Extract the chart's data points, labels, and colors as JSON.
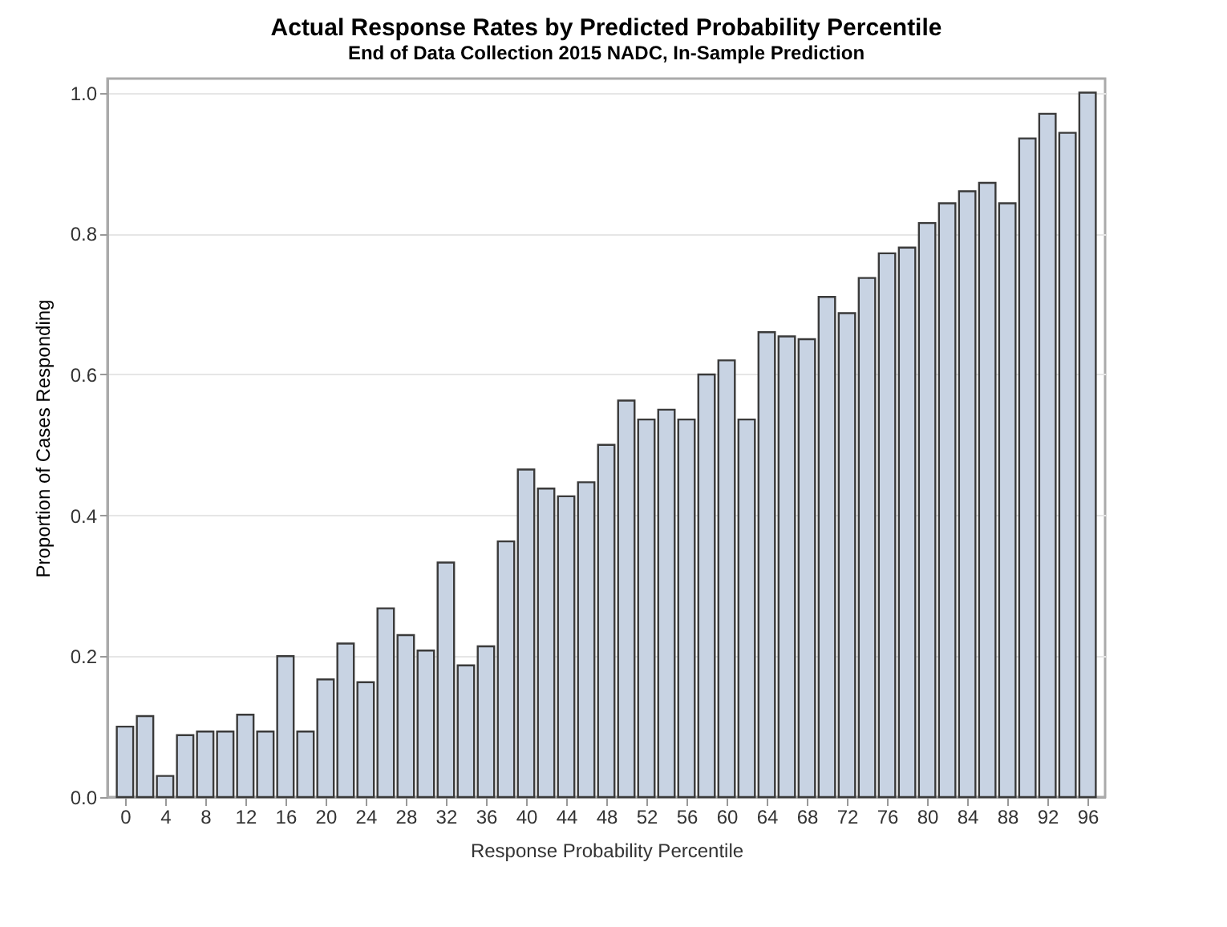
{
  "chart_data": {
    "type": "bar",
    "title": "Actual Response Rates by Predicted Probability Percentile",
    "subtitle": "End of Data Collection 2015 NADC, In-Sample Prediction",
    "xlabel": "Response Probability Percentile",
    "ylabel": "Proportion of Cases Responding",
    "x": [
      0,
      2,
      4,
      6,
      8,
      10,
      12,
      14,
      16,
      18,
      20,
      22,
      24,
      26,
      28,
      30,
      32,
      34,
      36,
      38,
      40,
      42,
      44,
      46,
      48,
      50,
      52,
      54,
      56,
      58,
      60,
      62,
      64,
      66,
      68,
      70,
      72,
      74,
      76,
      78,
      80,
      82,
      84,
      86,
      88,
      90,
      92,
      94,
      96
    ],
    "values": [
      0.1,
      0.115,
      0.03,
      0.088,
      0.093,
      0.093,
      0.117,
      0.093,
      0.2,
      0.093,
      0.167,
      0.218,
      0.163,
      0.268,
      0.23,
      0.208,
      0.333,
      0.187,
      0.214,
      0.363,
      0.465,
      0.438,
      0.427,
      0.447,
      0.5,
      0.563,
      0.536,
      0.55,
      0.536,
      0.6,
      0.62,
      0.536,
      0.66,
      0.654,
      0.65,
      0.71,
      0.687,
      0.737,
      0.772,
      0.78,
      0.815,
      0.843,
      0.86,
      0.872,
      0.843,
      0.935,
      0.97,
      0.943,
      1.0
    ],
    "color": "#c8d3e3",
    "xlim": [
      -1.75,
      97.75
    ],
    "xticks": [
      0,
      4,
      8,
      12,
      16,
      20,
      24,
      28,
      32,
      36,
      40,
      44,
      48,
      52,
      56,
      60,
      64,
      68,
      72,
      76,
      80,
      84,
      88,
      92,
      96
    ],
    "ylim": [
      0,
      1.02
    ],
    "yticks": [
      {
        "value": 0,
        "label": "0.0"
      },
      {
        "value": 0.2,
        "label": "0.2"
      },
      {
        "value": 0.4,
        "label": "0.4"
      },
      {
        "value": 0.6,
        "label": "0.6"
      },
      {
        "value": 0.8,
        "label": "0.8"
      },
      {
        "value": 1,
        "label": "1.0"
      }
    ],
    "grid": "y"
  }
}
